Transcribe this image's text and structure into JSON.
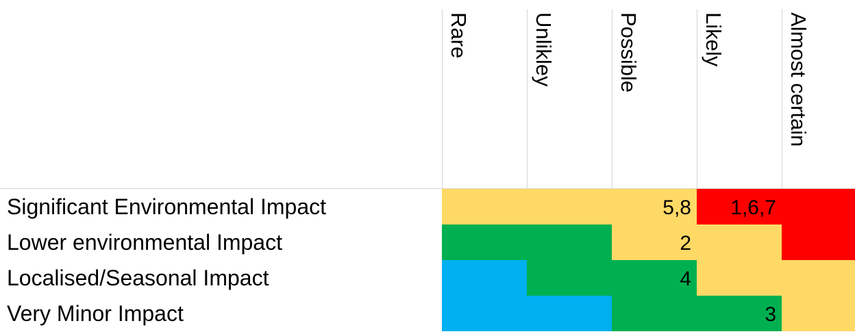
{
  "columns": [
    "Rare",
    "Unlikley",
    "Possible",
    "Likely",
    "Almost certain"
  ],
  "rows": [
    {
      "label": "Significant Environmental Impact",
      "cells": [
        {
          "color": "#ffd966",
          "value": ""
        },
        {
          "color": "#ffd966",
          "value": ""
        },
        {
          "color": "#ffd966",
          "value": "5,8"
        },
        {
          "color": "#ff0000",
          "value": "1,6,7"
        },
        {
          "color": "#ff0000",
          "value": ""
        }
      ]
    },
    {
      "label": "Lower environmental Impact",
      "cells": [
        {
          "color": "#00b050",
          "value": ""
        },
        {
          "color": "#00b050",
          "value": ""
        },
        {
          "color": "#ffd966",
          "value": "2"
        },
        {
          "color": "#ffd966",
          "value": ""
        },
        {
          "color": "#ff0000",
          "value": ""
        }
      ]
    },
    {
      "label": "Localised/Seasonal Impact",
      "cells": [
        {
          "color": "#00b0f0",
          "value": ""
        },
        {
          "color": "#00b050",
          "value": ""
        },
        {
          "color": "#00b050",
          "value": "4"
        },
        {
          "color": "#ffd966",
          "value": ""
        },
        {
          "color": "#ffd966",
          "value": ""
        }
      ]
    },
    {
      "label": "Very Minor Impact",
      "cells": [
        {
          "color": "#00b0f0",
          "value": ""
        },
        {
          "color": "#00b0f0",
          "value": ""
        },
        {
          "color": "#00b050",
          "value": ""
        },
        {
          "color": "#00b050",
          "value": "3"
        },
        {
          "color": "#ffd966",
          "value": ""
        }
      ]
    }
  ]
}
